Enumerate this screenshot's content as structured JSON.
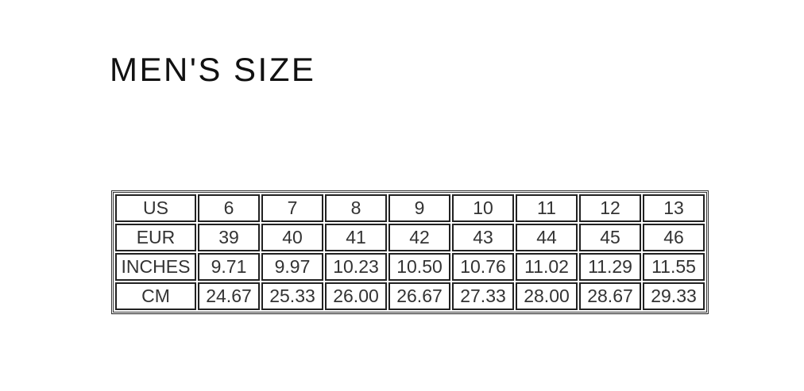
{
  "title": "MEN'S SIZE",
  "table": {
    "rows": [
      {
        "label": "US",
        "values": [
          "6",
          "7",
          "8",
          "9",
          "10",
          "11",
          "12",
          "13"
        ]
      },
      {
        "label": "EUR",
        "values": [
          "39",
          "40",
          "41",
          "42",
          "43",
          "44",
          "45",
          "46"
        ]
      },
      {
        "label": "INCHES",
        "values": [
          "9.71",
          "9.97",
          "10.23",
          "10.50",
          "10.76",
          "11.02",
          "11.29",
          "11.55"
        ]
      },
      {
        "label": "CM",
        "values": [
          "24.67",
          "25.33",
          "26.00",
          "26.67",
          "27.33",
          "28.00",
          "28.67",
          "29.33"
        ]
      }
    ]
  }
}
